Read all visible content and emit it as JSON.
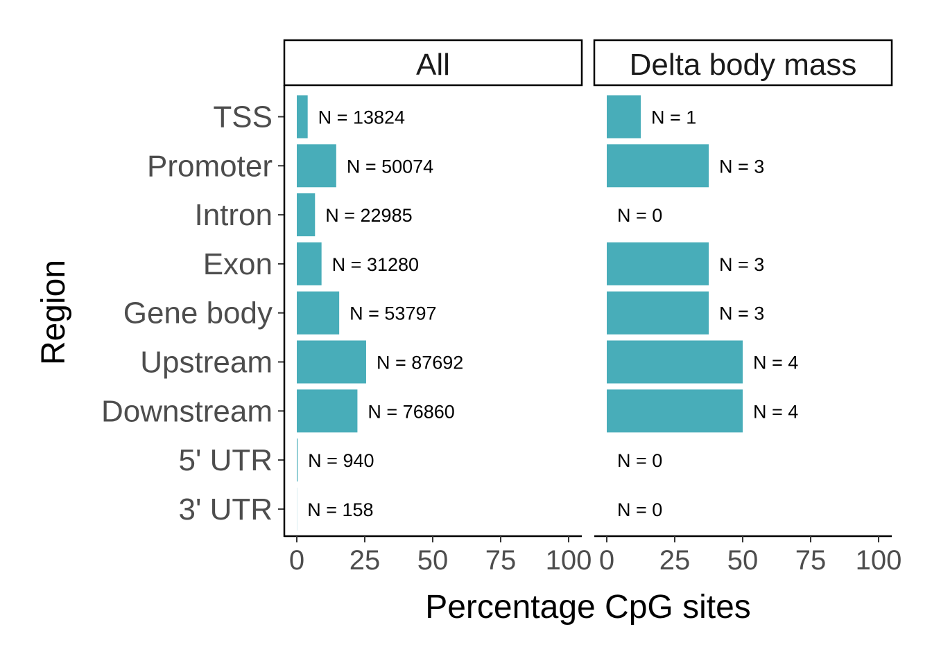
{
  "chart_data": {
    "type": "bar",
    "orientation": "horizontal",
    "xlabel": "Percentage CpG sites",
    "ylabel": "Region",
    "xlim": [
      0,
      100
    ],
    "xticks": [
      "0",
      "25",
      "50",
      "75",
      "100"
    ],
    "grid": false,
    "legend": "none",
    "categories": [
      "TSS",
      "Promoter",
      "Intron",
      "Exon",
      "Gene body",
      "Upstream",
      "Downstream",
      "5' UTR",
      "3' UTR"
    ],
    "bar_color": "#48adb9",
    "panels": [
      {
        "title": "All",
        "values": [
          4.0,
          14.5,
          6.7,
          9.1,
          15.6,
          25.5,
          22.3,
          0.3,
          0.05
        ],
        "labels": [
          "N = 13824",
          "N = 50074",
          "N = 22985",
          "N = 31280",
          "N = 53797",
          "N = 87692",
          "N = 76860",
          "N = 940",
          "N = 158"
        ]
      },
      {
        "title": "Delta body mass",
        "values": [
          12.5,
          37.5,
          0,
          37.5,
          37.5,
          50,
          50,
          0,
          0
        ],
        "labels": [
          "N = 1",
          "N = 3",
          "N = 0",
          "N = 3",
          "N = 3",
          "N = 4",
          "N = 4",
          "N = 0",
          "N = 0"
        ]
      }
    ]
  }
}
